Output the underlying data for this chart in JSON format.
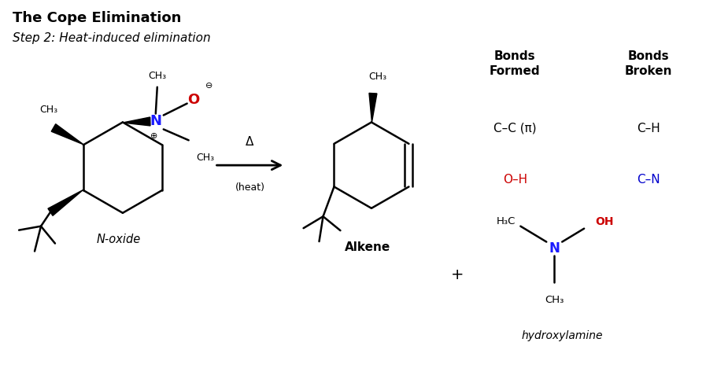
{
  "title": "The Cope Elimination",
  "subtitle": "Step 2: Heat-induced elimination",
  "background_color": "#ffffff",
  "title_fontsize": 13,
  "subtitle_fontsize": 11,
  "figsize": [
    9.12,
    4.68
  ],
  "dpi": 100,
  "bonds_formed_title": "Bonds\nFormed",
  "bonds_broken_title": "Bonds\nBroken",
  "bonds_formed": [
    "C–C (π)",
    "O–H"
  ],
  "bonds_broken": [
    "C–H",
    "C–N"
  ],
  "bonds_formed_colors": [
    "#000000",
    "#cc0000"
  ],
  "bonds_broken_colors": [
    "#000000",
    "#0000cc"
  ],
  "n_oxide_label": "N-oxide",
  "alkene_label": "Alkene",
  "delta_label": "Δ",
  "heat_label": "(heat)",
  "hydroxylamine_label": "hydroxylamine",
  "plus_sign": "+",
  "text_color": "#000000",
  "blue": "#1a1aff",
  "red": "#cc0000"
}
